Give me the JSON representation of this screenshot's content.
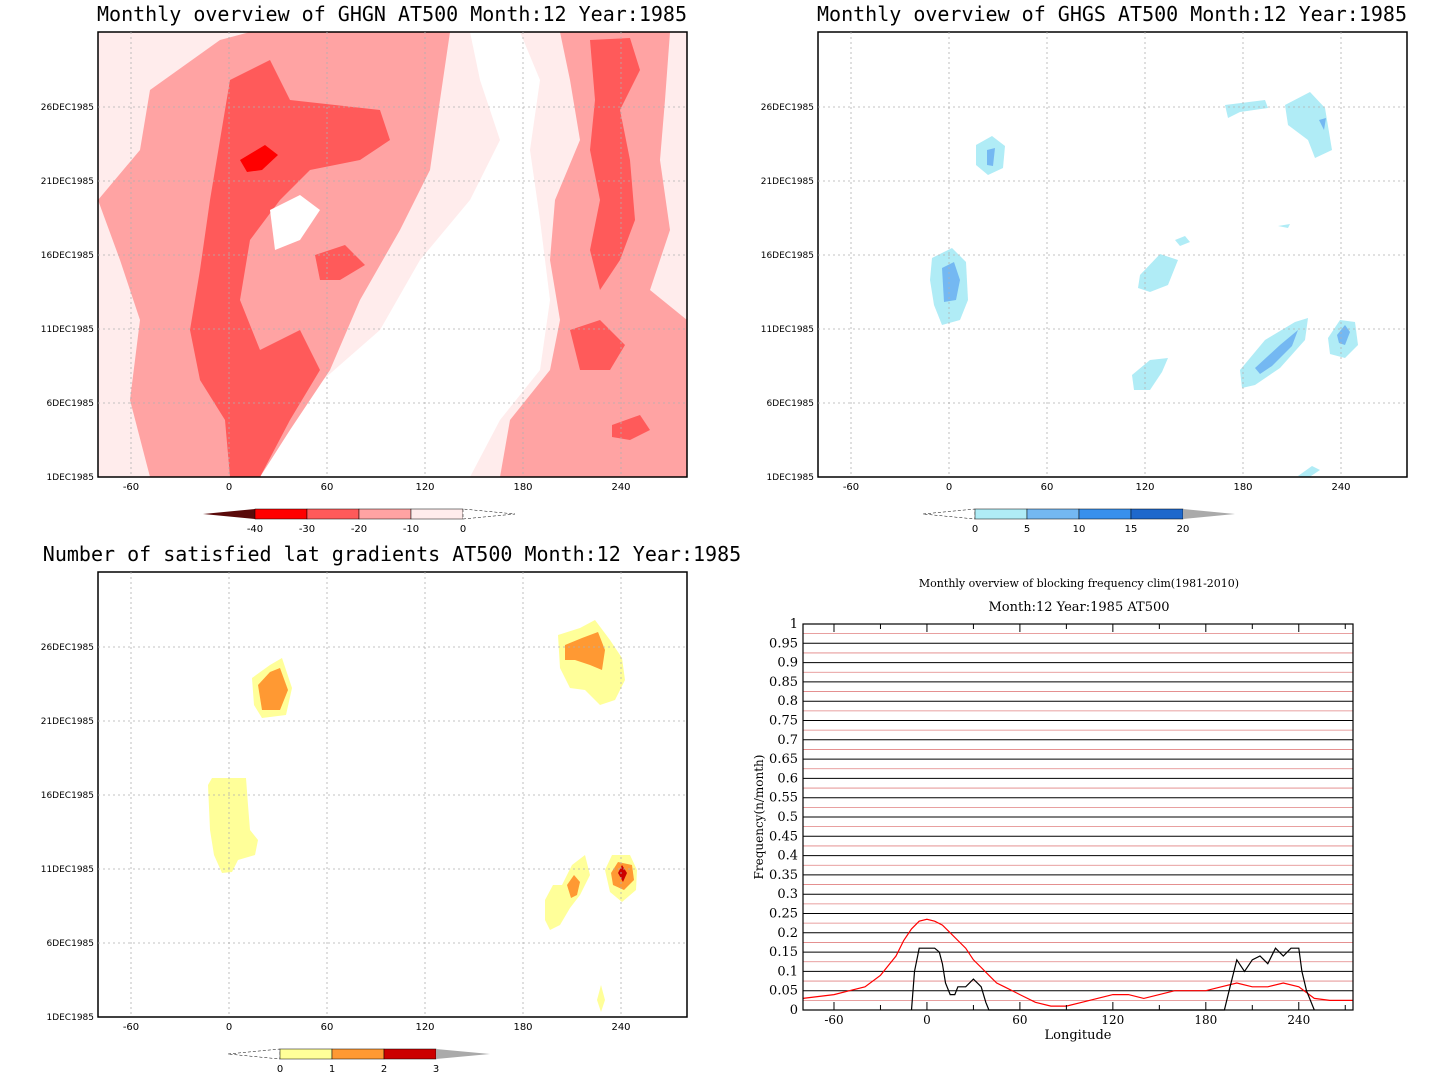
{
  "panels": {
    "ghgn": {
      "title": "Monthly overview of GHGN AT500 Month:12 Year:1985",
      "x_ticks": [
        "-60",
        "0",
        "60",
        "120",
        "180",
        "240"
      ],
      "y_ticks": [
        "1DEC1985",
        "6DEC1985",
        "11DEC1985",
        "16DEC1985",
        "21DEC1985",
        "26DEC1985"
      ],
      "colorbar_labels": [
        "-40",
        "-30",
        "-20",
        "-10",
        "0"
      ],
      "colorbar_colors": [
        "#5a0a0a",
        "#ff0000",
        "#ff5a5a",
        "#ffa3a3",
        "#ffecec"
      ]
    },
    "ghgs": {
      "title": "Monthly overview of GHGS AT500 Month:12 Year:1985",
      "x_ticks": [
        "-60",
        "0",
        "60",
        "120",
        "180",
        "240"
      ],
      "y_ticks": [
        "1DEC1985",
        "6DEC1985",
        "11DEC1985",
        "16DEC1985",
        "21DEC1985",
        "26DEC1985"
      ],
      "colorbar_labels": [
        "0",
        "5",
        "10",
        "15",
        "20"
      ],
      "colorbar_colors": [
        "#b0ecf6",
        "#74b8f2",
        "#3890ec",
        "#1e68cc",
        "#aaaaaa"
      ]
    },
    "lat": {
      "title": "Number of satisfied lat gradients AT500 Month:12 Year:1985",
      "x_ticks": [
        "-60",
        "0",
        "60",
        "120",
        "180",
        "240"
      ],
      "y_ticks": [
        "1DEC1985",
        "6DEC1985",
        "11DEC1985",
        "16DEC1985",
        "21DEC1985",
        "26DEC1985"
      ],
      "colorbar_labels": [
        "0",
        "1",
        "2",
        "3"
      ],
      "colorbar_colors": [
        "#ffff99",
        "#ff9933",
        "#cc0000",
        "#aaaaaa"
      ]
    }
  },
  "chart_data": {
    "type": "line",
    "title": "Monthly overview of blocking frequency clim(1981-2010)",
    "subtitle": "Month:12 Year:1985  AT500",
    "xlabel": "Longitude",
    "ylabel": "Frequency(n/month)",
    "xlim": [
      -80,
      275
    ],
    "ylim": [
      0,
      1
    ],
    "x_ticks": [
      "-60",
      "0",
      "60",
      "120",
      "180",
      "240"
    ],
    "y_ticks": [
      "0",
      "0.05",
      "0.1",
      "0.15",
      "0.2",
      "0.25",
      "0.3",
      "0.35",
      "0.4",
      "0.45",
      "0.5",
      "0.55",
      "0.6",
      "0.65",
      "0.7",
      "0.75",
      "0.8",
      "0.85",
      "0.9",
      "0.95",
      "1"
    ],
    "grid": true,
    "series": [
      {
        "color": "#ff0000",
        "x": [
          -80,
          -70,
          -60,
          -50,
          -40,
          -30,
          -20,
          -15,
          -10,
          -5,
          0,
          5,
          10,
          15,
          20,
          25,
          30,
          35,
          40,
          45,
          50,
          60,
          70,
          80,
          90,
          100,
          110,
          120,
          130,
          140,
          150,
          160,
          170,
          180,
          190,
          200,
          210,
          220,
          230,
          240,
          250,
          260,
          275
        ],
        "y": [
          0.03,
          0.035,
          0.04,
          0.05,
          0.06,
          0.09,
          0.14,
          0.18,
          0.21,
          0.23,
          0.235,
          0.23,
          0.22,
          0.2,
          0.18,
          0.16,
          0.13,
          0.11,
          0.09,
          0.07,
          0.06,
          0.04,
          0.02,
          0.01,
          0.01,
          0.02,
          0.03,
          0.04,
          0.04,
          0.03,
          0.04,
          0.05,
          0.05,
          0.05,
          0.06,
          0.07,
          0.06,
          0.06,
          0.07,
          0.06,
          0.03,
          0.025,
          0.025
        ]
      },
      {
        "color": "#000000",
        "x": [
          -10,
          -8,
          -5,
          5,
          8,
          10,
          12,
          15,
          18,
          20,
          25,
          30,
          35,
          38,
          40,
          192,
          195,
          200,
          205,
          210,
          215,
          220,
          225,
          230,
          235,
          240,
          242,
          245,
          250
        ],
        "y": [
          0,
          0.1,
          0.16,
          0.16,
          0.15,
          0.12,
          0.07,
          0.04,
          0.04,
          0.06,
          0.06,
          0.08,
          0.06,
          0.02,
          0,
          0,
          0.05,
          0.13,
          0.1,
          0.13,
          0.14,
          0.12,
          0.16,
          0.14,
          0.16,
          0.16,
          0.1,
          0.05,
          0
        ]
      }
    ]
  }
}
